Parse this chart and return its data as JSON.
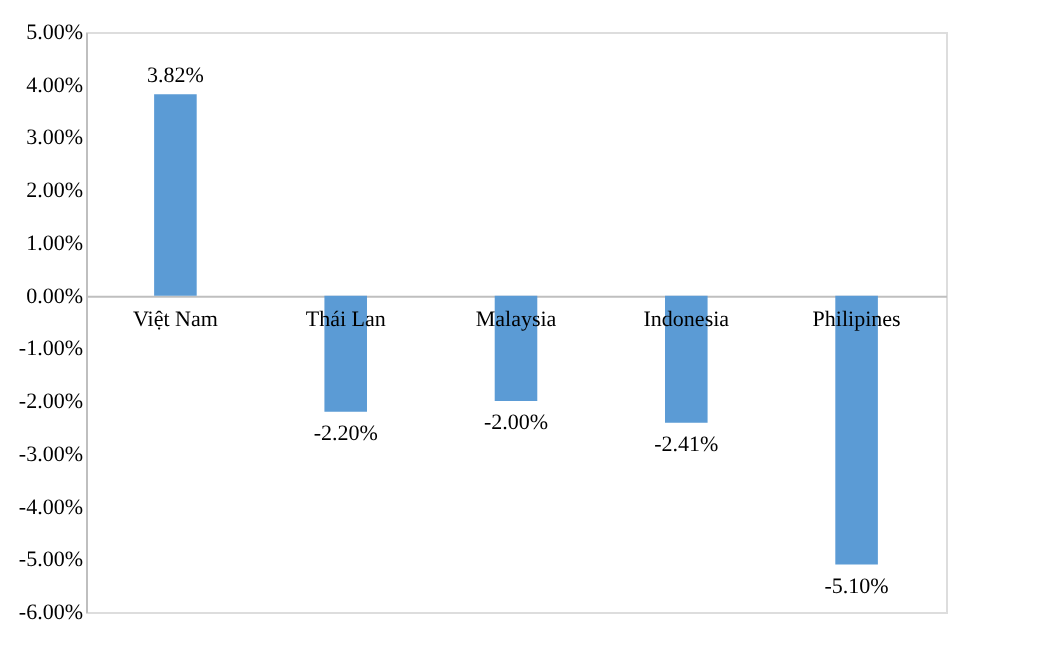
{
  "chart_data": {
    "type": "bar",
    "categories": [
      "Việt Nam",
      "Thái Lan",
      "Malaysia",
      "Indonesia",
      "Philipines"
    ],
    "values": [
      3.82,
      -2.2,
      -2.0,
      -2.41,
      -5.1
    ],
    "value_labels": [
      "3.82%",
      "-2.20%",
      "-2.00%",
      "-2.41%",
      "-5.10%"
    ],
    "color": "#5b9bd5",
    "ylim": [
      -6,
      5
    ],
    "yticks": [
      {
        "value": 5,
        "label": "5.00%"
      },
      {
        "value": 4,
        "label": "4.00%"
      },
      {
        "value": 3,
        "label": "3.00%"
      },
      {
        "value": 2,
        "label": "2.00%"
      },
      {
        "value": 1,
        "label": "1.00%"
      },
      {
        "value": 0,
        "label": "0.00%"
      },
      {
        "value": -1,
        "label": "-1.00%"
      },
      {
        "value": -2,
        "label": "-2.00%"
      },
      {
        "value": -3,
        "label": "-3.00%"
      },
      {
        "value": -4,
        "label": "-4.00%"
      },
      {
        "value": -5,
        "label": "-5.00%"
      },
      {
        "value": -6,
        "label": "-6.00%"
      }
    ],
    "grid": false
  }
}
